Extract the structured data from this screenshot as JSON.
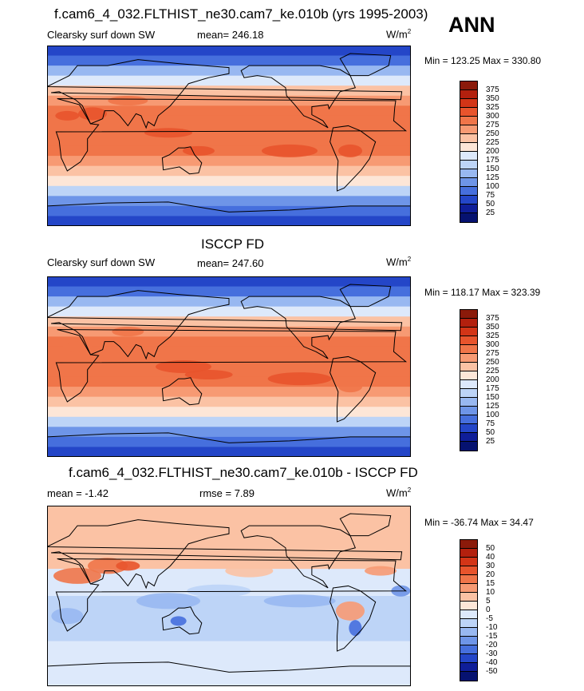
{
  "season": "ANN",
  "panels": [
    {
      "title": "f.cam6_4_032.FLTHIST_ne30.cam7_ke.010b (yrs 1995-2003)",
      "variable": "Clearsky surf down SW",
      "stat1": "mean= 246.18",
      "stat2": "",
      "units": "W/m",
      "units_sup": "2",
      "minmax": "Min = 123.25 Max = 330.80",
      "colorbar": {
        "labels": [
          "375",
          "350",
          "325",
          "300",
          "275",
          "250",
          "225",
          "200",
          "175",
          "150",
          "125",
          "100",
          "75",
          "50",
          "25"
        ],
        "colors": [
          "#8b1a0a",
          "#b3200e",
          "#d33517",
          "#e8542c",
          "#f07549",
          "#f79a73",
          "#fbc2a4",
          "#fde6d7",
          "#dde9fb",
          "#bdd4f7",
          "#98b8f1",
          "#6e95e8",
          "#466fdd",
          "#2446c8",
          "#0f1e99",
          "#061270"
        ]
      },
      "chart_data": {
        "type": "heatmap",
        "field": "Clearsky surface downwelling shortwave",
        "units": "W/m2",
        "levels": [
          25,
          50,
          75,
          100,
          125,
          150,
          175,
          200,
          225,
          250,
          275,
          300,
          325,
          350,
          375
        ],
        "mean": 246.18,
        "min": 123.25,
        "max": 330.8
      }
    },
    {
      "title": "ISCCP FD",
      "variable": "Clearsky surf down SW",
      "stat1": "mean= 247.60",
      "stat2": "",
      "units": "W/m",
      "units_sup": "2",
      "minmax": "Min = 118.17 Max = 323.39",
      "colorbar": {
        "labels": [
          "375",
          "350",
          "325",
          "300",
          "275",
          "250",
          "225",
          "200",
          "175",
          "150",
          "125",
          "100",
          "75",
          "50",
          "25"
        ],
        "colors": [
          "#8b1a0a",
          "#b3200e",
          "#d33517",
          "#e8542c",
          "#f07549",
          "#f79a73",
          "#fbc2a4",
          "#fde6d7",
          "#dde9fb",
          "#bdd4f7",
          "#98b8f1",
          "#6e95e8",
          "#466fdd",
          "#2446c8",
          "#0f1e99",
          "#061270"
        ]
      },
      "chart_data": {
        "type": "heatmap",
        "field": "Clearsky surface downwelling shortwave",
        "units": "W/m2",
        "levels": [
          25,
          50,
          75,
          100,
          125,
          150,
          175,
          200,
          225,
          250,
          275,
          300,
          325,
          350,
          375
        ],
        "mean": 247.6,
        "min": 118.17,
        "max": 323.39
      }
    },
    {
      "title": "f.cam6_4_032.FLTHIST_ne30.cam7_ke.010b - ISCCP FD",
      "variable": "",
      "stat1": "mean =  -1.42",
      "stat2": "rmse =   7.89",
      "units": "W/m",
      "units_sup": "2",
      "minmax": "Min = -36.74 Max =  34.47",
      "colorbar": {
        "labels": [
          "50",
          "40",
          "30",
          "20",
          "15",
          "10",
          "5",
          "0",
          "-5",
          "-10",
          "-15",
          "-20",
          "-30",
          "-40",
          "-50"
        ],
        "colors": [
          "#8b1a0a",
          "#b3200e",
          "#d33517",
          "#e8542c",
          "#f07549",
          "#f79a73",
          "#fbc2a4",
          "#fde6d7",
          "#dde9fb",
          "#bdd4f7",
          "#98b8f1",
          "#6e95e8",
          "#466fdd",
          "#2446c8",
          "#0f1e99",
          "#061270"
        ]
      },
      "chart_data": {
        "type": "heatmap",
        "field": "Difference (model - ISCCP FD)",
        "units": "W/m2",
        "levels": [
          -50,
          -40,
          -30,
          -20,
          -15,
          -10,
          -5,
          0,
          5,
          10,
          15,
          20,
          30,
          40,
          50
        ],
        "mean": -1.42,
        "rmse": 7.89,
        "min": -36.74,
        "max": 34.47
      }
    }
  ]
}
